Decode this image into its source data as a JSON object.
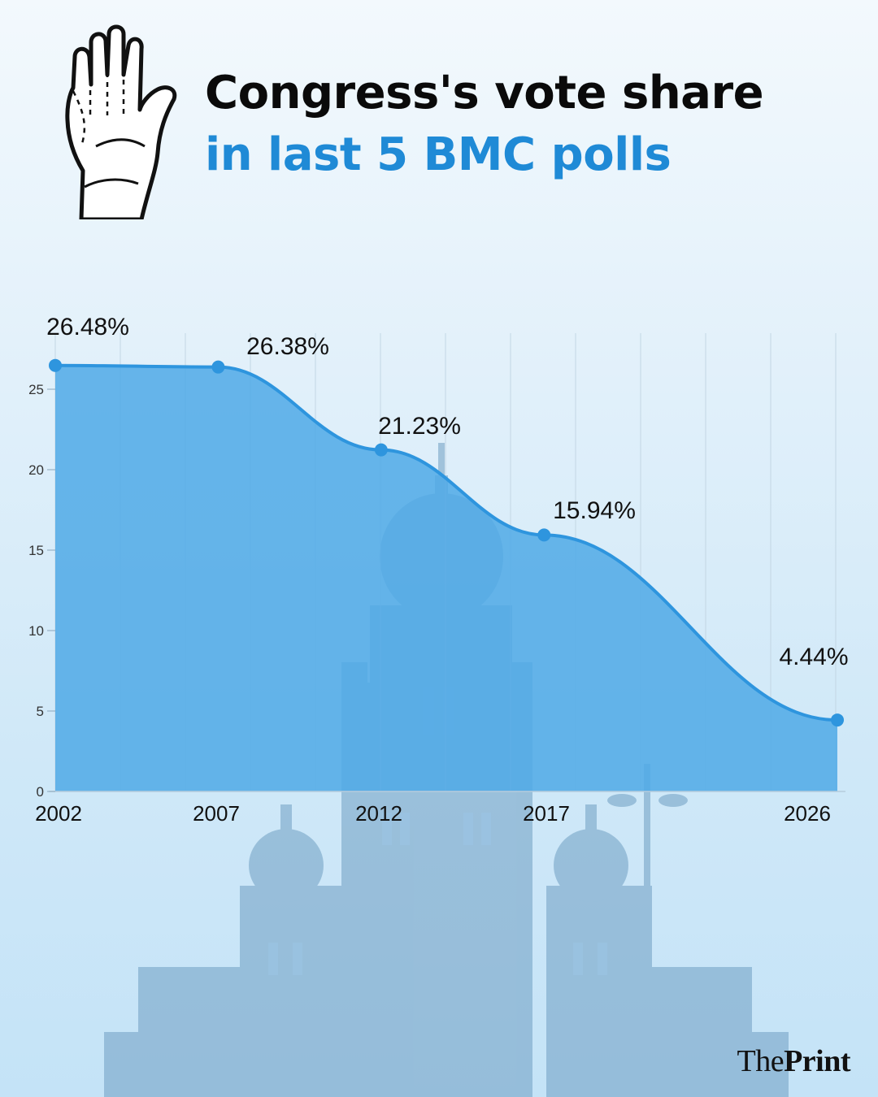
{
  "header": {
    "title_line1": "Congress's vote share",
    "title_line2": "in last 5 BMC polls",
    "logo_icon": "congress-hand-icon"
  },
  "chart_data": {
    "type": "area",
    "title": "Congress's vote share in last 5 BMC polls",
    "categories": [
      "2002",
      "2007",
      "2012",
      "2017",
      "2026"
    ],
    "x": [
      2002,
      2007,
      2012,
      2017,
      2026
    ],
    "values": [
      26.48,
      26.38,
      21.23,
      15.94,
      4.44
    ],
    "data_labels": [
      "26.48%",
      "26.38%",
      "21.23%",
      "15.94%",
      "4.44%"
    ],
    "yticks": [
      "0",
      "5",
      "10",
      "15",
      "20",
      "25"
    ],
    "ylim": [
      0,
      27
    ],
    "xlabel": "",
    "ylabel": "",
    "grid": "vertical",
    "colors": {
      "line": "#2e95de",
      "fill": "#4fa9e6",
      "marker": "#2e95de",
      "title_accent": "#1f8ad6"
    }
  },
  "footer": {
    "source_prefix": "The",
    "source_suffix": "Print"
  }
}
